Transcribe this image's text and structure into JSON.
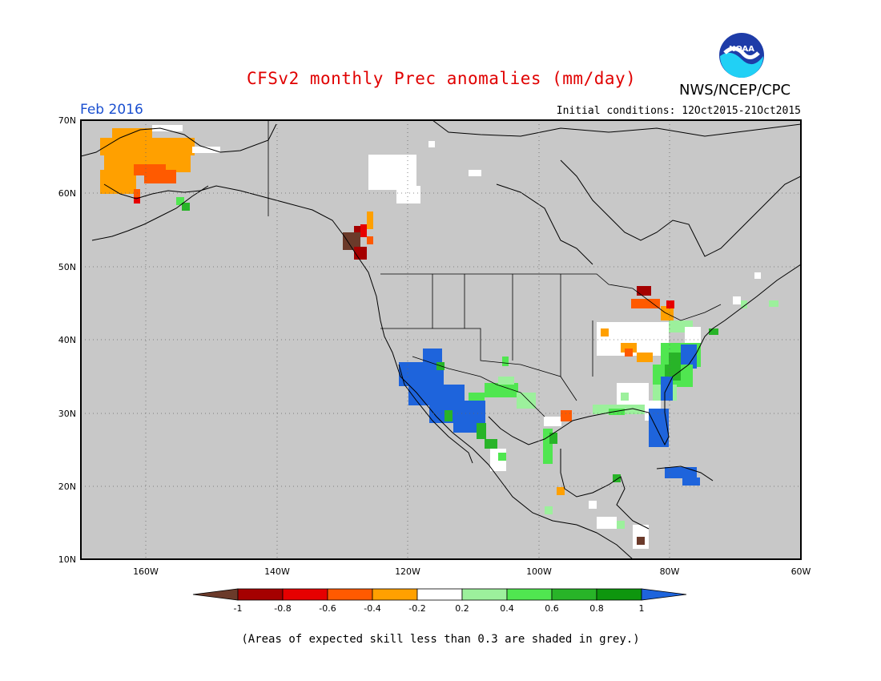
{
  "header": {
    "title": "CFSv2 monthly Prec anomalies (mm/day)",
    "agency": "NWS/NCEP/CPC",
    "month": "Feb 2016",
    "initial_conditions": "Initial conditions: 12Oct2015-21Oct2015",
    "logo_text": "NOAA"
  },
  "axes": {
    "lat_labels": [
      "70N",
      "60N",
      "50N",
      "40N",
      "30N",
      "20N",
      "10N"
    ],
    "lon_labels": [
      "160W",
      "140W",
      "120W",
      "100W",
      "80W",
      "60W"
    ]
  },
  "colorbar": {
    "labels": [
      "-1",
      "-0.8",
      "-0.6",
      "-0.4",
      "-0.2",
      "0.2",
      "0.4",
      "0.6",
      "0.8",
      "1"
    ],
    "colors": [
      "#6b3a2a",
      "#a50000",
      "#e60000",
      "#ff5a00",
      "#ffa000",
      "#ffffff",
      "#9cf09c",
      "#50e650",
      "#28b428",
      "#0e960e",
      "#1e64dc"
    ]
  },
  "footnote": "(Areas of expected skill less than 0.3 are shaded in grey.)",
  "map": {
    "extent": {
      "lon_min": -170,
      "lon_max": -60,
      "lat_min": 10,
      "lat_max": 70
    },
    "background": "#c8c8c8"
  }
}
